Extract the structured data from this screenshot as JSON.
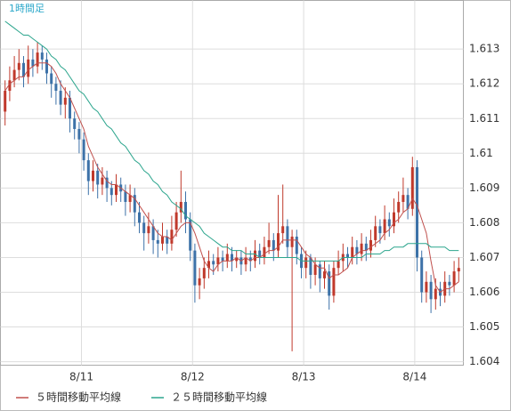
{
  "chart_data": {
    "type": "candlestick",
    "title": "1時間足",
    "open": [
      1.6112,
      1.6118,
      1.6121,
      1.6124,
      1.6126,
      1.6122,
      1.6127,
      1.6125,
      1.6129,
      1.6127,
      1.6123,
      1.612,
      1.6118,
      1.6114,
      1.6116,
      1.611,
      1.6107,
      1.6104,
      1.6098,
      1.6092,
      1.6095,
      1.6091,
      1.6093,
      1.609,
      1.6088,
      1.6091,
      1.6089,
      1.6086,
      1.6088,
      1.6083,
      1.608,
      1.6077,
      1.6079,
      1.6075,
      1.6074,
      1.6076,
      1.6074,
      1.6078,
      1.6083,
      1.6086,
      1.6081,
      1.6072,
      1.6062,
      1.6064,
      1.6067,
      1.6069,
      1.6068,
      1.607,
      1.6069,
      1.6071,
      1.6069,
      1.607,
      1.6068,
      1.607,
      1.6069,
      1.6072,
      1.607,
      1.6073,
      1.6075,
      1.6072,
      1.6077,
      1.6079,
      1.6073,
      1.6076,
      1.6071,
      1.6067,
      1.607,
      1.6065,
      1.6068,
      1.6064,
      1.6066,
      1.6059,
      1.6067,
      1.6069,
      1.6071,
      1.607,
      1.6073,
      1.6071,
      1.6074,
      1.6072,
      1.6075,
      1.6079,
      1.6077,
      1.6081,
      1.6079,
      1.6083,
      1.6086,
      1.6088,
      1.6084,
      1.6096,
      1.607,
      1.606,
      1.6063,
      1.6058,
      1.6061,
      1.6059,
      1.6063,
      1.6062,
      1.6066
    ],
    "high": [
      1.6121,
      1.6125,
      1.6128,
      1.613,
      1.6128,
      1.6131,
      1.613,
      1.6132,
      1.6131,
      1.6129,
      1.6125,
      1.6122,
      1.6121,
      1.6119,
      1.6118,
      1.6112,
      1.6109,
      1.6106,
      1.61,
      1.6098,
      1.6097,
      1.6096,
      1.6095,
      1.6092,
      1.6094,
      1.6093,
      1.6091,
      1.6091,
      1.609,
      1.6086,
      1.6082,
      1.6083,
      1.6081,
      1.6078,
      1.608,
      1.6078,
      1.6082,
      1.6086,
      1.6095,
      1.6089,
      1.6083,
      1.6074,
      1.6067,
      1.607,
      1.6072,
      1.6071,
      1.6073,
      1.6072,
      1.6074,
      1.6073,
      1.6072,
      1.6072,
      1.6073,
      1.6072,
      1.6075,
      1.6074,
      1.6076,
      1.608,
      1.6077,
      1.6088,
      1.6091,
      1.6081,
      1.6078,
      1.6078,
      1.6073,
      1.6072,
      1.6071,
      1.607,
      1.6069,
      1.6069,
      1.6068,
      1.6069,
      1.6072,
      1.6074,
      1.6073,
      1.6076,
      1.6075,
      1.6077,
      1.6076,
      1.6078,
      1.6082,
      1.6081,
      1.6085,
      1.6083,
      1.6087,
      1.6089,
      1.6093,
      1.609,
      1.6099,
      1.6098,
      1.6072,
      1.6066,
      1.6065,
      1.6064,
      1.6063,
      1.6066,
      1.6065,
      1.6069,
      1.607
    ],
    "low": [
      1.6108,
      1.6115,
      1.6119,
      1.6121,
      1.6119,
      1.612,
      1.6122,
      1.6123,
      1.6124,
      1.612,
      1.6116,
      1.6114,
      1.6111,
      1.611,
      1.6106,
      1.6104,
      1.61,
      1.6095,
      1.6088,
      1.6089,
      1.6087,
      1.6088,
      1.6086,
      1.6085,
      1.6086,
      1.6086,
      1.6082,
      1.6083,
      1.6079,
      1.6077,
      1.6072,
      1.6074,
      1.6071,
      1.607,
      1.6072,
      1.6071,
      1.6072,
      1.6076,
      1.608,
      1.6077,
      1.6069,
      1.6057,
      1.6058,
      1.6061,
      1.6064,
      1.6065,
      1.6066,
      1.6066,
      1.6067,
      1.6066,
      1.6067,
      1.6065,
      1.6066,
      1.6066,
      1.6067,
      1.6068,
      1.6068,
      1.6071,
      1.6069,
      1.607,
      1.6074,
      1.607,
      1.6043,
      1.6068,
      1.6064,
      1.6064,
      1.6061,
      1.6062,
      1.606,
      1.6061,
      1.6055,
      1.6057,
      1.6065,
      1.6066,
      1.6067,
      1.6068,
      1.6068,
      1.6069,
      1.6069,
      1.607,
      1.6073,
      1.6074,
      1.6075,
      1.6076,
      1.6077,
      1.608,
      1.6083,
      1.6081,
      1.6082,
      1.6066,
      1.6057,
      1.6057,
      1.6054,
      1.6055,
      1.6056,
      1.6057,
      1.6059,
      1.606,
      1.6063
    ],
    "close": [
      1.6118,
      1.6121,
      1.6124,
      1.6126,
      1.6122,
      1.6127,
      1.6125,
      1.6129,
      1.6127,
      1.6123,
      1.612,
      1.6118,
      1.6114,
      1.6116,
      1.611,
      1.6107,
      1.6104,
      1.6098,
      1.6092,
      1.6095,
      1.6091,
      1.6093,
      1.609,
      1.6088,
      1.6091,
      1.6089,
      1.6086,
      1.6088,
      1.6083,
      1.608,
      1.6077,
      1.6079,
      1.6075,
      1.6074,
      1.6076,
      1.6074,
      1.6078,
      1.6083,
      1.6086,
      1.6081,
      1.6072,
      1.6062,
      1.6064,
      1.6067,
      1.6069,
      1.6068,
      1.607,
      1.6069,
      1.6071,
      1.6069,
      1.607,
      1.6068,
      1.607,
      1.6069,
      1.6072,
      1.607,
      1.6073,
      1.6075,
      1.6072,
      1.6077,
      1.6079,
      1.6073,
      1.6076,
      1.6071,
      1.6067,
      1.607,
      1.6065,
      1.6068,
      1.6064,
      1.6066,
      1.6059,
      1.6067,
      1.6069,
      1.6071,
      1.607,
      1.6073,
      1.6071,
      1.6074,
      1.6072,
      1.6075,
      1.6079,
      1.6077,
      1.6081,
      1.6079,
      1.6083,
      1.6086,
      1.6088,
      1.6084,
      1.6096,
      1.607,
      1.606,
      1.6063,
      1.6058,
      1.6061,
      1.6059,
      1.6063,
      1.6062,
      1.6066,
      1.6067
    ],
    "up_color": "#c0392b",
    "down_color": "#3d72a8",
    "series": [
      {
        "name": "５時間移動平均線",
        "color": "#c0504d",
        "values": [
          1.6118,
          1.612,
          1.6121,
          1.6122,
          1.6122,
          1.6124,
          1.6125,
          1.6126,
          1.6126,
          1.6126,
          1.6125,
          1.6123,
          1.612,
          1.6118,
          1.6116,
          1.6113,
          1.611,
          1.6107,
          1.6102,
          1.6099,
          1.6096,
          1.6094,
          1.6092,
          1.6091,
          1.6091,
          1.609,
          1.6089,
          1.6088,
          1.6087,
          1.6085,
          1.6083,
          1.6081,
          1.6079,
          1.6077,
          1.6076,
          1.6076,
          1.6075,
          1.6077,
          1.6079,
          1.608,
          1.608,
          1.6077,
          1.6073,
          1.6069,
          1.6067,
          1.6066,
          1.6068,
          1.6069,
          1.6069,
          1.6069,
          1.607,
          1.6069,
          1.607,
          1.6069,
          1.607,
          1.607,
          1.6071,
          1.6072,
          1.6072,
          1.6073,
          1.6075,
          1.6075,
          1.6075,
          1.6075,
          1.6073,
          1.6071,
          1.607,
          1.6068,
          1.6067,
          1.6067,
          1.6064,
          1.6065,
          1.6065,
          1.6066,
          1.6067,
          1.607,
          1.6071,
          1.6072,
          1.6072,
          1.6073,
          1.6074,
          1.6075,
          1.6077,
          1.6078,
          1.608,
          1.6081,
          1.6083,
          1.6084,
          1.6087,
          1.6085,
          1.6081,
          1.6077,
          1.6069,
          1.6062,
          1.606,
          1.6061,
          1.6061,
          1.6062,
          1.6063
        ]
      },
      {
        "name": "２５時間移動平均線",
        "color": "#2ca58d",
        "values": [
          1.6138,
          1.6137,
          1.6136,
          1.6135,
          1.6134,
          1.6134,
          1.6133,
          1.6132,
          1.6131,
          1.613,
          1.6128,
          1.6127,
          1.6125,
          1.6124,
          1.6122,
          1.612,
          1.6118,
          1.6117,
          1.6115,
          1.6113,
          1.6112,
          1.611,
          1.6108,
          1.6107,
          1.6105,
          1.6103,
          1.6102,
          1.61,
          1.6098,
          1.6097,
          1.6095,
          1.6094,
          1.6092,
          1.6091,
          1.6089,
          1.6088,
          1.6086,
          1.6085,
          1.6084,
          1.6082,
          1.6081,
          1.608,
          1.6079,
          1.6077,
          1.6076,
          1.6075,
          1.6074,
          1.6073,
          1.6073,
          1.6072,
          1.6072,
          1.6072,
          1.6071,
          1.6071,
          1.6071,
          1.607,
          1.607,
          1.607,
          1.607,
          1.607,
          1.607,
          1.607,
          1.607,
          1.607,
          1.6069,
          1.6069,
          1.6069,
          1.6069,
          1.6069,
          1.6069,
          1.6069,
          1.6069,
          1.6069,
          1.607,
          1.607,
          1.607,
          1.607,
          1.607,
          1.6071,
          1.6071,
          1.6071,
          1.6071,
          1.6072,
          1.6072,
          1.6073,
          1.6073,
          1.6073,
          1.6074,
          1.6074,
          1.6074,
          1.6074,
          1.6074,
          1.6073,
          1.6073,
          1.6073,
          1.6073,
          1.6072,
          1.6072,
          1.6072
        ]
      }
    ],
    "xlim": [
      -1,
      99
    ],
    "xticks": [
      {
        "value": 16.5,
        "label": "8/11"
      },
      {
        "value": 40.5,
        "label": "8/12"
      },
      {
        "value": 64.5,
        "label": "8/13"
      },
      {
        "value": 88.5,
        "label": "8/14"
      }
    ],
    "ylim": [
      1.6039,
      1.6144
    ],
    "yticks": [
      1.604,
      1.605,
      1.606,
      1.607,
      1.608,
      1.609,
      1.61,
      1.611,
      1.612,
      1.613
    ],
    "grid": true
  }
}
